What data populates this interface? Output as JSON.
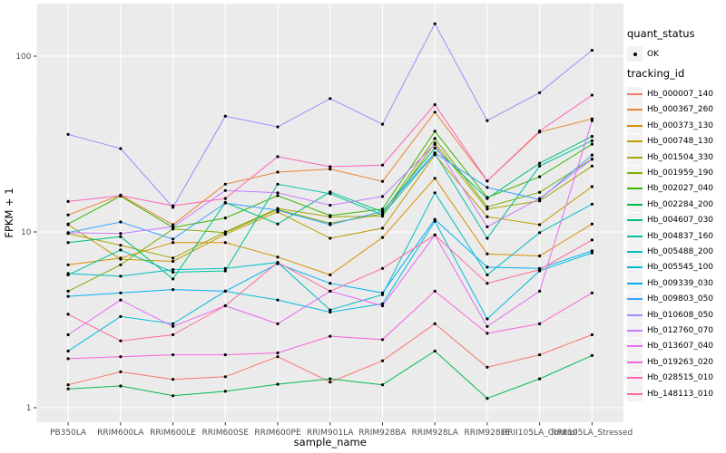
{
  "figure": {
    "legend": {
      "quant_status_title": "quant_status",
      "ok_label": "OK",
      "tracking_id_title": "tracking_id"
    },
    "colors": {
      "panel_bg": "#EBEBEB",
      "grid": "#FFFFFF",
      "tick_text": "#4D4D4D",
      "axis_title_text": "#000000",
      "point": "#000000",
      "legend_key_bg": "#F2F2F2"
    }
  },
  "chart_data": {
    "type": "line",
    "title": "",
    "xlabel": "sample_name",
    "ylabel": "FPKM + 1",
    "y_scale": "log10",
    "ylim": [
      0.83,
      195
    ],
    "grid": true,
    "legend_position": "right",
    "y_ticks": [
      {
        "label": "100",
        "value": 100
      },
      {
        "label": "10",
        "value": 10
      },
      {
        "label": "1",
        "value": 1
      }
    ],
    "y_minor_ticks": [
      31.62,
      3.162
    ],
    "categories": [
      "PB350LA",
      "RRIM600LA",
      "RRIM600LE",
      "RRIM600SE",
      "RRIM600PE",
      "RRIM901LA",
      "RRIM928BA",
      "RRIM928LA",
      "RRIM928LE",
      "RRII105LA_Control",
      "RRII105LA_Stressed"
    ],
    "quant_status": "OK",
    "series": [
      {
        "name": "Hb_000007_140",
        "color": "#F8766D",
        "values": [
          1.35,
          1.6,
          1.45,
          1.5,
          1.95,
          1.4,
          1.85,
          3.0,
          1.7,
          2.0,
          2.6
        ]
      },
      {
        "name": "Hb_000367_260",
        "color": "#EA8331",
        "values": [
          12.5,
          16.2,
          11.0,
          18.7,
          21.9,
          22.8,
          19.4,
          48.0,
          19.5,
          37.0,
          44.0
        ]
      },
      {
        "name": "Hb_000373_130",
        "color": "#D89000",
        "values": [
          6.5,
          7.1,
          8.7,
          8.7,
          7.2,
          5.7,
          9.3,
          20.2,
          7.5,
          7.3,
          11.1
        ]
      },
      {
        "name": "Hb_000748_130",
        "color": "#C09B00",
        "values": [
          11.0,
          7.0,
          6.8,
          9.7,
          13.0,
          9.2,
          10.5,
          27.5,
          12.2,
          11.0,
          18.1
        ]
      },
      {
        "name": "Hb_001504_330",
        "color": "#A3A500",
        "values": [
          9.8,
          8.4,
          7.1,
          10.0,
          13.6,
          12.2,
          12.3,
          32.0,
          13.5,
          15.0,
          23.7
        ]
      },
      {
        "name": "Hb_001959_190",
        "color": "#7CAE00",
        "values": [
          4.6,
          6.5,
          10.4,
          9.9,
          13.4,
          11.2,
          12.7,
          34.0,
          13.9,
          16.8,
          26.0
        ]
      },
      {
        "name": "Hb_002027_040",
        "color": "#39B600",
        "values": [
          11.1,
          16.0,
          10.6,
          12.0,
          16.1,
          12.4,
          13.5,
          37.4,
          15.7,
          20.6,
          31.6
        ]
      },
      {
        "name": "Hb_002284_200",
        "color": "#00BB4E",
        "values": [
          1.28,
          1.33,
          1.17,
          1.24,
          1.36,
          1.46,
          1.35,
          2.1,
          1.13,
          1.46,
          1.98
        ]
      },
      {
        "name": "Hb_004607_030",
        "color": "#00BF7D",
        "values": [
          8.7,
          9.4,
          5.4,
          14.7,
          11.1,
          16.9,
          13.0,
          30.0,
          15.5,
          24.6,
          35.0
        ]
      },
      {
        "name": "Hb_004837_160",
        "color": "#00C1A3",
        "values": [
          5.7,
          7.9,
          5.9,
          6.0,
          18.7,
          16.5,
          12.5,
          28.0,
          9.2,
          23.7,
          33.0
        ]
      },
      {
        "name": "Hb_005488_200",
        "color": "#00BFC4",
        "values": [
          5.8,
          5.6,
          6.1,
          6.2,
          6.7,
          3.6,
          4.4,
          16.7,
          5.7,
          9.9,
          14.4
        ]
      },
      {
        "name": "Hb_005545_100",
        "color": "#00BAE0",
        "values": [
          2.1,
          3.3,
          3.0,
          4.6,
          4.1,
          3.5,
          3.9,
          11.5,
          3.2,
          6.0,
          7.6
        ]
      },
      {
        "name": "Hb_009339_030",
        "color": "#00B0F6",
        "values": [
          4.3,
          4.5,
          4.7,
          4.6,
          6.6,
          5.1,
          4.5,
          11.8,
          6.3,
          6.2,
          7.8
        ]
      },
      {
        "name": "Hb_009803_050",
        "color": "#35A2FF",
        "values": [
          9.9,
          11.4,
          9.1,
          14.6,
          13.3,
          11.0,
          13.1,
          28.2,
          17.9,
          15.3,
          27.4
        ]
      },
      {
        "name": "Hb_010608_050",
        "color": "#9590FF",
        "values": [
          35.9,
          29.8,
          13.8,
          45.6,
          39.6,
          57.4,
          41.0,
          153.0,
          43.0,
          62.0,
          108.0
        ]
      },
      {
        "name": "Hb_012760_070",
        "color": "#C77CFF",
        "values": [
          9.9,
          9.8,
          10.7,
          17.2,
          16.7,
          14.2,
          15.9,
          31.5,
          10.7,
          15.5,
          25.9
        ]
      },
      {
        "name": "Hb_013607_040",
        "color": "#E76BF3",
        "values": [
          2.6,
          4.1,
          2.9,
          3.8,
          3.0,
          4.6,
          3.8,
          9.6,
          2.9,
          4.6,
          43.0
        ]
      },
      {
        "name": "Hb_019263_020",
        "color": "#FA62DB",
        "values": [
          1.9,
          1.95,
          2.0,
          2.0,
          2.05,
          2.55,
          2.44,
          4.6,
          2.65,
          3.0,
          4.5
        ]
      },
      {
        "name": "Hb_028515_010",
        "color": "#FF62BC",
        "values": [
          14.9,
          16.1,
          14.1,
          15.5,
          26.8,
          23.5,
          24.0,
          53.0,
          19.5,
          37.5,
          60.0
        ]
      },
      {
        "name": "Hb_148113_010",
        "color": "#FF6A98",
        "values": [
          3.4,
          2.4,
          2.6,
          3.8,
          6.7,
          4.6,
          6.2,
          9.6,
          5.1,
          6.1,
          9.0
        ]
      }
    ]
  }
}
